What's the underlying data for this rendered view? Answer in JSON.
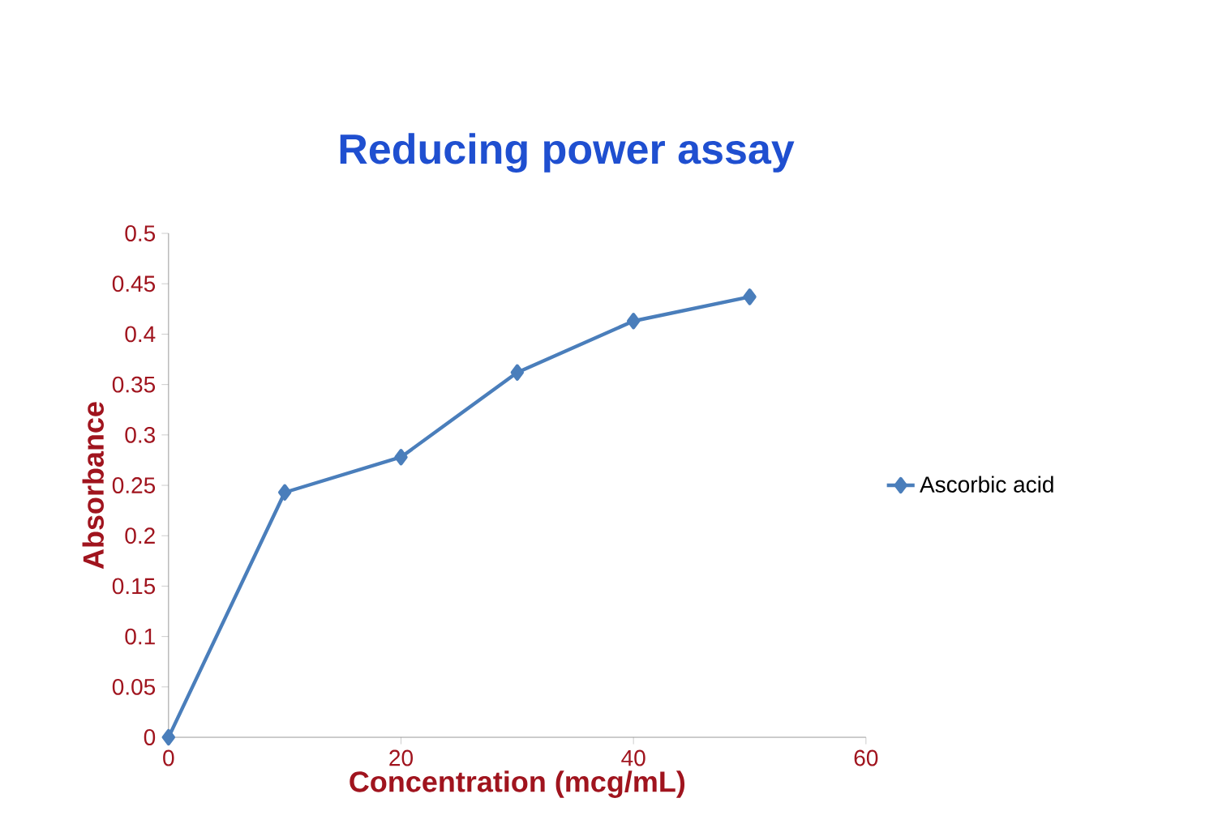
{
  "chart_data": {
    "type": "line",
    "title": "Reducing power assay",
    "xlabel": "Concentration (mcg/mL)",
    "ylabel": "Absorbance",
    "x": [
      0,
      10,
      20,
      30,
      40,
      50
    ],
    "series": [
      {
        "name": "Ascorbic acid",
        "color": "#4a7ebb",
        "values": [
          0,
          0.243,
          0.278,
          0.362,
          0.413,
          0.437
        ]
      }
    ],
    "xlim": [
      0,
      60
    ],
    "xticks": [
      0,
      20,
      40,
      60
    ],
    "ylim": [
      0,
      0.5
    ],
    "yticks": [
      0,
      0.05,
      0.1,
      0.15,
      0.2,
      0.25,
      0.3,
      0.35,
      0.4,
      0.45,
      0.5
    ],
    "grid": false,
    "legend": "right",
    "marker": "diamond",
    "line_style": "solid"
  }
}
